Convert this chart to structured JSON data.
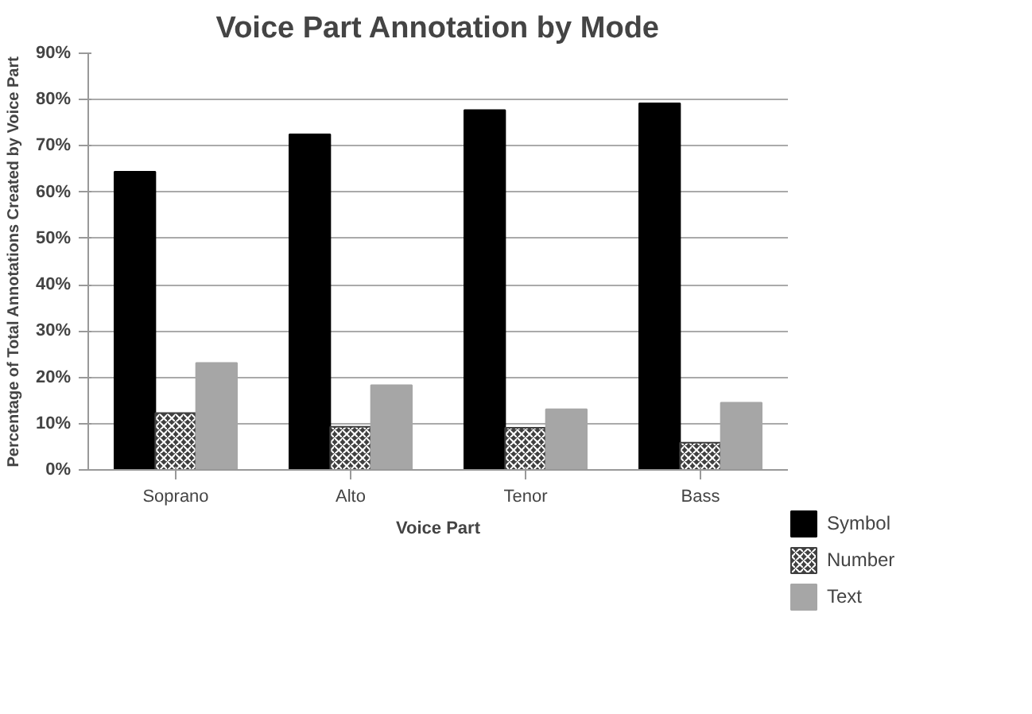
{
  "chart_data": {
    "type": "bar",
    "title": "Voice Part Annotation by Mode",
    "xlabel": "Voice Part",
    "ylabel": "Percentage of Total Annotations Created by Voice Part",
    "categories": [
      "Soprano",
      "Alto",
      "Tenor",
      "Bass"
    ],
    "series": [
      {
        "name": "Symbol",
        "color": "#000000",
        "values": [
          64.4,
          72.5,
          77.7,
          79.2
        ]
      },
      {
        "name": "Number",
        "color": "#404040",
        "values": [
          12.3,
          9.3,
          9.1,
          5.9
        ]
      },
      {
        "name": "Text",
        "color": "#a6a6a6",
        "values": [
          23.1,
          18.3,
          13.1,
          14.5
        ]
      }
    ],
    "ylim": [
      0,
      90
    ],
    "yticks": [
      {
        "value": 0,
        "label": "0%"
      },
      {
        "value": 10,
        "label": "10%"
      },
      {
        "value": 20,
        "label": "20%"
      },
      {
        "value": 30,
        "label": "30%"
      },
      {
        "value": 40,
        "label": "40%"
      },
      {
        "value": 50,
        "label": "50%"
      },
      {
        "value": 60,
        "label": "60%"
      },
      {
        "value": 70,
        "label": "70%"
      },
      {
        "value": 80,
        "label": "80%"
      },
      {
        "value": 90,
        "label": "90%"
      }
    ],
    "grid": "y",
    "legend": "right"
  }
}
